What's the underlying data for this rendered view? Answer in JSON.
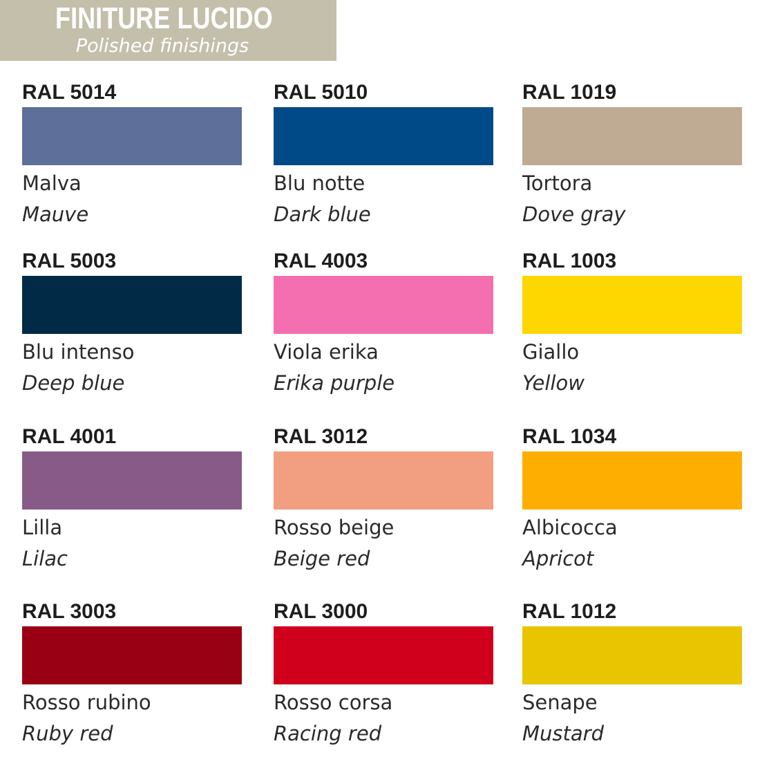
{
  "header": {
    "title": "FINITURE LUCIDO",
    "subtitle": "Polished finishings",
    "background": "#c4bfab"
  },
  "swatches": [
    {
      "code": "RAL 5014",
      "name_it": "Malva",
      "name_en": "Mauve",
      "color": "#5e7099"
    },
    {
      "code": "RAL 5010",
      "name_it": "Blu notte",
      "name_en": "Dark blue",
      "color": "#004b87"
    },
    {
      "code": "RAL 1019",
      "name_it": "Tortora",
      "name_en": "Dove gray",
      "color": "#bfab93"
    },
    {
      "code": "RAL 5003",
      "name_it": "Blu intenso",
      "name_en": "Deep blue",
      "color": "#002a46"
    },
    {
      "code": "RAL 4003",
      "name_it": "Viola erika",
      "name_en": "Erika purple",
      "color": "#f46fb0"
    },
    {
      "code": "RAL 1003",
      "name_it": "Giallo",
      "name_en": "Yellow",
      "color": "#fed600"
    },
    {
      "code": "RAL 4001",
      "name_it": "Lilla",
      "name_en": "Lilac",
      "color": "#885a88"
    },
    {
      "code": "RAL 3012",
      "name_it": "Rosso beige",
      "name_en": "Beige red",
      "color": "#f29e80"
    },
    {
      "code": "RAL 1034",
      "name_it": "Albicocca",
      "name_en": "Apricot",
      "color": "#feae00"
    },
    {
      "code": "RAL 3003",
      "name_it": "Rosso rubino",
      "name_en": "Ruby red",
      "color": "#9a0014"
    },
    {
      "code": "RAL 3000",
      "name_it": "Rosso corsa",
      "name_en": "Racing red",
      "color": "#d0001c"
    },
    {
      "code": "RAL 1012",
      "name_it": "Senape",
      "name_en": "Mustard",
      "color": "#e8c500"
    }
  ]
}
